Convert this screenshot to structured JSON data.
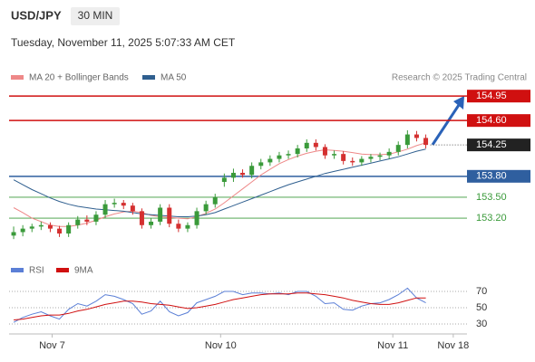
{
  "chart_data": {
    "type": "candlestick",
    "symbol": "USD/JPY",
    "timeframe": "30 MIN",
    "subtitle": "Tuesday, November 11, 2025 5:07:33 AM CET",
    "credit": "Research © 2025 Trading Central",
    "xlim": [
      0,
      50
    ],
    "xticks": [
      {
        "value": 4.7,
        "label": "Nov 7"
      },
      {
        "value": 23.1,
        "label": "Nov 10"
      },
      {
        "value": 41.9,
        "label": "Nov 11"
      },
      {
        "value": 48.5,
        "label": "Nov 18"
      }
    ],
    "ylim": [
      152.63,
      155.16
    ],
    "open": [
      152.95,
      153.0,
      153.05,
      153.08,
      153.1,
      153.05,
      152.98,
      153.1,
      153.18,
      153.15,
      153.25,
      153.4,
      153.42,
      153.38,
      153.3,
      153.1,
      153.15,
      153.35,
      153.12,
      153.05,
      153.1,
      153.3,
      153.4,
      153.72,
      153.78,
      153.85,
      153.82,
      153.95,
      154.0,
      154.05,
      154.1,
      154.12,
      154.2,
      154.28,
      154.22,
      154.1,
      154.12,
      154.02,
      154.0,
      154.05,
      154.08,
      154.1,
      154.15,
      154.25,
      154.4,
      154.35
    ],
    "high": [
      153.08,
      153.1,
      153.12,
      153.15,
      153.14,
      153.09,
      153.14,
      153.23,
      153.24,
      153.3,
      153.46,
      153.48,
      153.46,
      153.42,
      153.34,
      153.2,
      153.4,
      153.4,
      153.18,
      153.14,
      153.35,
      153.45,
      153.55,
      153.84,
      153.91,
      153.9,
      154.0,
      154.05,
      154.1,
      154.15,
      154.17,
      154.25,
      154.33,
      154.33,
      154.26,
      154.17,
      154.16,
      154.07,
      154.09,
      154.12,
      154.14,
      154.2,
      154.3,
      154.46,
      154.45,
      154.4
    ],
    "low": [
      152.9,
      152.94,
      153.0,
      153.03,
      153.0,
      152.93,
      152.93,
      153.05,
      153.1,
      153.1,
      153.2,
      153.35,
      153.33,
      153.25,
      153.05,
      153.05,
      153.1,
      153.07,
      153.0,
      153.0,
      153.05,
      153.25,
      153.35,
      153.65,
      153.72,
      153.78,
      153.77,
      153.9,
      153.95,
      154.0,
      154.05,
      154.07,
      154.15,
      154.17,
      154.05,
      154.05,
      153.97,
      153.95,
      153.95,
      154.0,
      154.03,
      154.05,
      154.1,
      154.2,
      154.3,
      154.2
    ],
    "close": [
      153.0,
      153.05,
      153.08,
      153.1,
      153.05,
      152.98,
      153.1,
      153.18,
      153.15,
      153.25,
      153.4,
      153.42,
      153.38,
      153.3,
      153.1,
      153.15,
      153.35,
      153.12,
      153.05,
      153.1,
      153.3,
      153.4,
      153.5,
      153.78,
      153.85,
      153.82,
      153.95,
      154.0,
      154.05,
      154.1,
      154.12,
      154.2,
      154.28,
      154.22,
      154.1,
      154.12,
      154.02,
      154.0,
      154.05,
      154.08,
      154.1,
      154.15,
      154.25,
      154.4,
      154.35,
      154.25
    ],
    "up_color": "#3a9a3a",
    "down_color": "#d43030",
    "series": [
      {
        "name": "MA 20 + Bollinger Bands",
        "color": "#e88",
        "values": [
          153.35,
          153.28,
          153.2,
          153.15,
          153.1,
          153.08,
          153.08,
          153.1,
          153.13,
          153.17,
          153.22,
          153.26,
          153.29,
          153.3,
          153.28,
          153.24,
          153.22,
          153.21,
          153.2,
          153.19,
          153.22,
          153.27,
          153.33,
          153.42,
          153.52,
          153.62,
          153.72,
          153.82,
          153.9,
          153.98,
          154.04,
          154.09,
          154.13,
          154.16,
          154.18,
          154.17,
          154.16,
          154.14,
          154.12,
          154.11,
          154.11,
          154.12,
          154.15,
          154.19,
          154.24,
          154.28
        ]
      },
      {
        "name": "MA 50",
        "color": "#2f5f8f",
        "values": [
          153.75,
          153.68,
          153.61,
          153.55,
          153.49,
          153.44,
          153.4,
          153.37,
          153.35,
          153.33,
          153.32,
          153.31,
          153.3,
          153.28,
          153.26,
          153.25,
          153.24,
          153.23,
          153.22,
          153.22,
          153.23,
          153.25,
          153.28,
          153.33,
          153.38,
          153.43,
          153.48,
          153.53,
          153.58,
          153.63,
          153.68,
          153.72,
          153.76,
          153.8,
          153.84,
          153.87,
          153.9,
          153.93,
          153.96,
          153.99,
          154.02,
          154.05,
          154.08,
          154.12,
          154.16,
          154.19
        ]
      }
    ],
    "levels": [
      {
        "value": 154.95,
        "label": "154.95",
        "color": "#d01010",
        "style": "box"
      },
      {
        "value": 154.6,
        "label": "154.60",
        "color": "#d01010",
        "style": "box"
      },
      {
        "value": 154.25,
        "label": "154.25",
        "color": "#222222",
        "style": "current"
      },
      {
        "value": 153.8,
        "label": "153.80",
        "color": "#2f5f9f",
        "style": "box"
      },
      {
        "value": 153.5,
        "label": "153.50",
        "color": "#3a9a3a",
        "style": "text"
      },
      {
        "value": 153.2,
        "label": "153.20",
        "color": "#3a9a3a",
        "style": "text"
      }
    ],
    "rsi": {
      "ylim": [
        20,
        90
      ],
      "yticks": [
        70,
        50,
        30
      ],
      "series": [
        {
          "name": "RSI",
          "color": "#5b7fd6",
          "values": [
            32,
            38,
            42,
            45,
            40,
            36,
            48,
            55,
            52,
            58,
            66,
            64,
            60,
            55,
            42,
            46,
            58,
            45,
            40,
            44,
            56,
            60,
            64,
            70,
            70,
            66,
            68,
            68,
            67,
            68,
            66,
            70,
            70,
            64,
            55,
            56,
            48,
            47,
            52,
            55,
            56,
            60,
            66,
            74,
            62,
            56
          ]
        },
        {
          "name": "9MA",
          "color": "#d01010",
          "values": [
            35,
            36,
            38,
            40,
            41,
            41,
            43,
            46,
            48,
            51,
            54,
            56,
            58,
            58,
            57,
            55,
            54,
            53,
            51,
            49,
            50,
            52,
            54,
            57,
            60,
            62,
            64,
            66,
            67,
            67,
            67,
            68,
            68,
            67,
            66,
            64,
            62,
            59,
            57,
            55,
            54,
            54,
            56,
            59,
            62,
            62
          ]
        }
      ]
    }
  }
}
